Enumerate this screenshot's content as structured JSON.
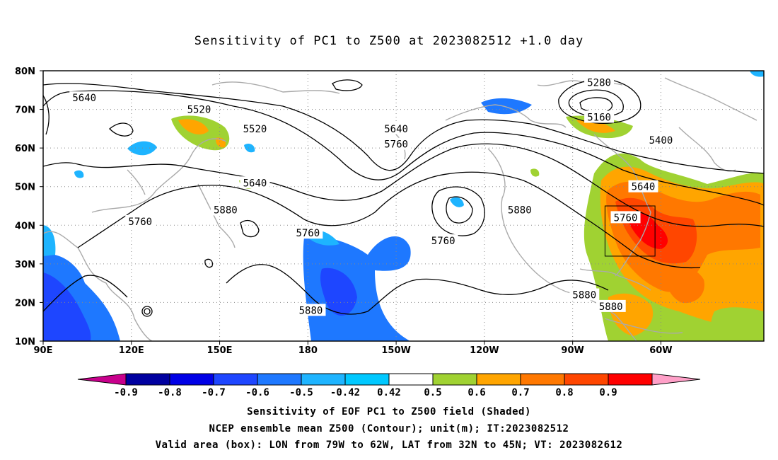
{
  "title": "Sensitivity of PC1 to Z500 at 2023082512 +1.0 day",
  "lat_labels": [
    "80N",
    "70N",
    "60N",
    "50N",
    "40N",
    "30N",
    "20N",
    "10N"
  ],
  "lon_labels": [
    "90E",
    "120E",
    "150E",
    "180",
    "150W",
    "120W",
    "90W",
    "60W"
  ],
  "contour_labels": [
    {
      "text": "5640",
      "lon": 104,
      "lat": 73
    },
    {
      "text": "5520",
      "lon": 162,
      "lat": 65
    },
    {
      "text": "5520",
      "lon": 143,
      "lat": 70
    },
    {
      "text": "5640",
      "lon": 162,
      "lat": 51
    },
    {
      "text": "5880",
      "lon": 152,
      "lat": 44
    },
    {
      "text": "5760",
      "lon": 123,
      "lat": 41
    },
    {
      "text": "5760",
      "lon": 180,
      "lat": 38
    },
    {
      "text": "5880",
      "lon": 181,
      "lat": 18
    },
    {
      "text": "5640",
      "lon": 210,
      "lat": 65
    },
    {
      "text": "5760",
      "lon": 210,
      "lat": 61
    },
    {
      "text": "5760",
      "lon": 226,
      "lat": 36
    },
    {
      "text": "5880",
      "lon": 252,
      "lat": 44
    },
    {
      "text": "5280",
      "lon": 279,
      "lat": 77
    },
    {
      "text": "5160",
      "lon": 279,
      "lat": 68
    },
    {
      "text": "5400",
      "lon": 300,
      "lat": 62
    },
    {
      "text": "5640",
      "lon": 294,
      "lat": 50
    },
    {
      "text": "5760",
      "lon": 288,
      "lat": 42
    },
    {
      "text": "5880",
      "lon": 274,
      "lat": 22
    },
    {
      "text": "5880",
      "lon": 283,
      "lat": 19
    }
  ],
  "colorbar": {
    "labels": [
      "-0.9",
      "-0.8",
      "-0.7",
      "-0.6",
      "-0.5",
      "-0.42",
      "0.42",
      "0.5",
      "0.6",
      "0.7",
      "0.8",
      "0.9"
    ],
    "colors": [
      "#c8008c",
      "#0000a0",
      "#0000e6",
      "#1e46ff",
      "#1e78ff",
      "#1eb4ff",
      "#00c8ff",
      "#ffffff",
      "#a0d232",
      "#ffa500",
      "#ff7800",
      "#ff4600",
      "#ff0000",
      "#ffa0c8"
    ]
  },
  "valid_box": {
    "lon_min": 281,
    "lon_max": 298,
    "lat_min": 32,
    "lat_max": 45
  },
  "captions": {
    "line1": "Sensitivity of EOF PC1 to Z500 field (Shaded)",
    "line2": "NCEP ensemble mean Z500 (Contour); unit(m); IT:2023082512",
    "line3": "Valid area (box): LON from 79W to 62W, LAT from 32N to 45N; VT: 2023082612"
  }
}
